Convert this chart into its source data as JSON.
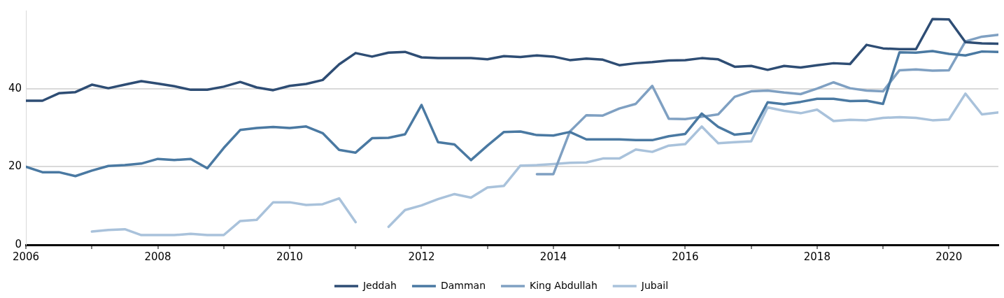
{
  "chart_data": {
    "type": "line",
    "x": [
      2006,
      2006.25,
      2006.5,
      2006.75,
      2007,
      2007.25,
      2007.5,
      2007.75,
      2008,
      2008.25,
      2008.5,
      2008.75,
      2009,
      2009.25,
      2009.5,
      2009.75,
      2010,
      2010.25,
      2010.5,
      2010.75,
      2011,
      2011.25,
      2011.5,
      2011.75,
      2012,
      2012.25,
      2012.5,
      2012.75,
      2013,
      2013.25,
      2013.5,
      2013.75,
      2014,
      2014.25,
      2014.5,
      2014.75,
      2015,
      2015.25,
      2015.5,
      2015.75,
      2016,
      2016.25,
      2016.5,
      2016.75,
      2017,
      2017.25,
      2017.5,
      2017.75,
      2018,
      2018.25,
      2018.5,
      2018.75,
      2019,
      2019.25,
      2019.5,
      2019.75,
      2020,
      2020.25,
      2020.5,
      2020.75
    ],
    "series": [
      {
        "name": "Jeddah",
        "color": "#2e4d74",
        "values": [
          36.9,
          36.9,
          38.8,
          39.1,
          41.0,
          40.1,
          41.0,
          41.9,
          41.3,
          40.6,
          39.7,
          39.7,
          40.5,
          41.7,
          40.3,
          39.6,
          40.7,
          41.2,
          42.2,
          46.2,
          49.1,
          48.2,
          49.2,
          49.4,
          48.0,
          47.8,
          47.8,
          47.8,
          47.5,
          48.3,
          48.1,
          48.5,
          48.2,
          47.3,
          47.7,
          47.4,
          46.0,
          46.5,
          46.8,
          47.2,
          47.3,
          47.8,
          47.5,
          45.6,
          45.8,
          44.8,
          45.8,
          45.4,
          46.0,
          46.5,
          46.3,
          51.2,
          50.3,
          50.1,
          50.1,
          57.8,
          57.7,
          51.9,
          51.6,
          51.5
        ]
      },
      {
        "name": "Damman",
        "color": "#4a79a2",
        "values": [
          20.0,
          18.6,
          18.6,
          17.6,
          19.0,
          20.2,
          20.4,
          20.8,
          22.0,
          21.7,
          22.0,
          19.6,
          24.8,
          29.4,
          29.9,
          30.2,
          29.9,
          30.3,
          28.6,
          24.3,
          23.6,
          27.3,
          27.4,
          28.3,
          35.8,
          26.3,
          25.7,
          21.7,
          25.4,
          28.9,
          29.0,
          28.1,
          28.0,
          28.9,
          27.0,
          27.0,
          27.0,
          26.8,
          26.8,
          27.8,
          28.4,
          33.6,
          30.2,
          28.2,
          28.6,
          36.5,
          36.0,
          36.6,
          37.4,
          37.4,
          36.8,
          36.9,
          36.1,
          49.3,
          49.2,
          49.6,
          48.9,
          48.5,
          49.5,
          49.4
        ]
      },
      {
        "name": "King Abdullah",
        "color": "#7fa0c2",
        "values": [
          null,
          null,
          null,
          null,
          null,
          null,
          null,
          null,
          null,
          null,
          null,
          null,
          null,
          null,
          null,
          null,
          null,
          null,
          null,
          null,
          null,
          null,
          null,
          null,
          null,
          null,
          null,
          null,
          null,
          null,
          null,
          18.1,
          18.1,
          29.0,
          33.2,
          33.1,
          34.9,
          36.1,
          40.7,
          32.3,
          32.2,
          32.8,
          33.4,
          37.9,
          39.3,
          39.5,
          39.0,
          38.6,
          40.0,
          41.6,
          40.1,
          39.5,
          39.3,
          44.7,
          44.9,
          44.6,
          44.7,
          52.1,
          53.3,
          53.8
        ]
      },
      {
        "name": "Jubail",
        "color": "#a9c2db",
        "values": [
          null,
          null,
          null,
          null,
          3.4,
          3.8,
          4.0,
          2.5,
          2.5,
          2.5,
          2.8,
          2.5,
          2.5,
          6.1,
          6.4,
          10.9,
          10.9,
          10.2,
          10.4,
          11.9,
          5.8,
          null,
          4.6,
          8.9,
          10.1,
          11.7,
          13.0,
          12.1,
          14.7,
          15.1,
          20.3,
          20.4,
          20.7,
          21.0,
          21.1,
          22.1,
          22.1,
          24.4,
          23.8,
          25.4,
          25.8,
          30.3,
          26.0,
          26.3,
          26.5,
          35.2,
          34.3,
          33.7,
          34.6,
          31.7,
          32.0,
          31.9,
          32.5,
          32.7,
          32.5,
          31.9,
          32.1,
          38.7,
          33.4,
          33.9
        ]
      }
    ],
    "xlim": [
      2006,
      2020.75
    ],
    "xticks": [
      2006,
      {
        "value": 2007,
        "label": null
      },
      2008,
      {
        "value": 2009,
        "label": null
      },
      2010,
      {
        "value": 2011,
        "label": null
      },
      2012,
      {
        "value": 2013,
        "label": null
      },
      2014,
      {
        "value": 2015,
        "label": null
      },
      2016,
      {
        "value": 2017,
        "label": null
      },
      2018,
      {
        "value": 2019,
        "label": null
      },
      2020
    ],
    "ylim": [
      0,
      60
    ],
    "yticks": [
      0,
      20,
      40
    ],
    "grid": "y",
    "legend": "bottom",
    "marker": "none",
    "line_style": "solid"
  }
}
